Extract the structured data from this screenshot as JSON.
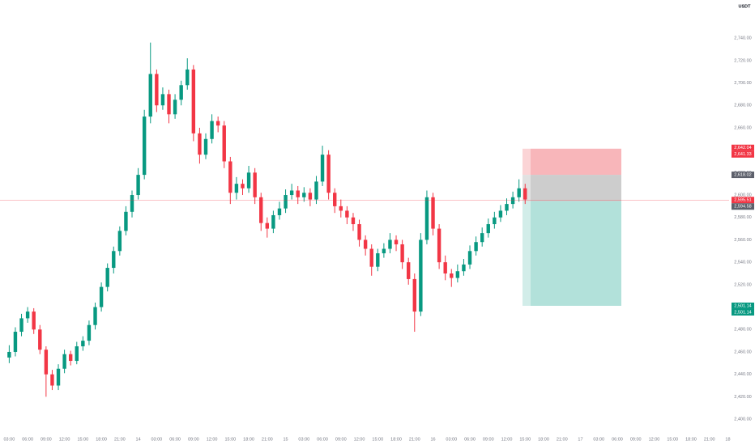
{
  "chart_data": {
    "type": "candlestick",
    "unit_label": "USDT",
    "up_color": "#089981",
    "down_color": "#f23645",
    "ylim": [
      2395,
      2774
    ],
    "xlim": [
      -1.5,
      120.5
    ],
    "yticks": [
      {
        "value": 2400,
        "label": "2,400.00"
      },
      {
        "value": 2420,
        "label": "2,420.00"
      },
      {
        "value": 2440,
        "label": "2,440.00"
      },
      {
        "value": 2460,
        "label": "2,460.00"
      },
      {
        "value": 2480,
        "label": "2,480.00"
      },
      {
        "value": 2500,
        "label": "2,500.00"
      },
      {
        "value": 2520,
        "label": "2,520.00"
      },
      {
        "value": 2540,
        "label": "2,540.00"
      },
      {
        "value": 2560,
        "label": "2,560.00"
      },
      {
        "value": 2580,
        "label": "2,580.00"
      },
      {
        "value": 2600,
        "label": "2,600.00"
      },
      {
        "value": 2620,
        "label": "2,620.00"
      },
      {
        "value": 2640,
        "label": "2,640.00"
      },
      {
        "value": 2660,
        "label": "2,660.00"
      },
      {
        "value": 2680,
        "label": "2,680.00"
      },
      {
        "value": 2700,
        "label": "2,700.00"
      },
      {
        "value": 2720,
        "label": "2,720.00"
      },
      {
        "value": 2740,
        "label": "2,740.00"
      }
    ],
    "xticks": [
      {
        "value": 0,
        "label": "03:00"
      },
      {
        "value": 3,
        "label": "06:00"
      },
      {
        "value": 6,
        "label": "09:00"
      },
      {
        "value": 9,
        "label": "12:00"
      },
      {
        "value": 12,
        "label": "15:00"
      },
      {
        "value": 15,
        "label": "18:00"
      },
      {
        "value": 18,
        "label": "21:00"
      },
      {
        "value": 21,
        "label": "14"
      },
      {
        "value": 24,
        "label": "03:00"
      },
      {
        "value": 27,
        "label": "06:00"
      },
      {
        "value": 30,
        "label": "09:00"
      },
      {
        "value": 33,
        "label": "12:00"
      },
      {
        "value": 36,
        "label": "15:00"
      },
      {
        "value": 39,
        "label": "18:00"
      },
      {
        "value": 42,
        "label": "21:00"
      },
      {
        "value": 45,
        "label": "15"
      },
      {
        "value": 48,
        "label": "03:00"
      },
      {
        "value": 51,
        "label": "06:00"
      },
      {
        "value": 54,
        "label": "09:00"
      },
      {
        "value": 57,
        "label": "12:00"
      },
      {
        "value": 60,
        "label": "15:00"
      },
      {
        "value": 63,
        "label": "18:00"
      },
      {
        "value": 66,
        "label": "21:00"
      },
      {
        "value": 69,
        "label": "16"
      },
      {
        "value": 72,
        "label": "03:00"
      },
      {
        "value": 75,
        "label": "06:00"
      },
      {
        "value": 78,
        "label": "09:00"
      },
      {
        "value": 81,
        "label": "12:00"
      },
      {
        "value": 84,
        "label": "15:00"
      },
      {
        "value": 87,
        "label": "18:00"
      },
      {
        "value": 90,
        "label": "21:00"
      },
      {
        "value": 93,
        "label": "17"
      },
      {
        "value": 96,
        "label": "03:00"
      },
      {
        "value": 99,
        "label": "06:00"
      },
      {
        "value": 102,
        "label": "09:00"
      },
      {
        "value": 105,
        "label": "12:00"
      },
      {
        "value": 108,
        "label": "15:00"
      },
      {
        "value": 111,
        "label": "18:00"
      },
      {
        "value": 114,
        "label": "21:00"
      },
      {
        "value": 117,
        "label": "18"
      }
    ],
    "ohlc": [
      [
        2455,
        2466,
        2450,
        2460
      ],
      [
        2460,
        2482,
        2456,
        2478
      ],
      [
        2478,
        2494,
        2474,
        2490
      ],
      [
        2490,
        2500,
        2486,
        2496
      ],
      [
        2496,
        2499,
        2476,
        2480
      ],
      [
        2480,
        2484,
        2458,
        2462
      ],
      [
        2462,
        2465,
        2420,
        2440
      ],
      [
        2440,
        2444,
        2426,
        2430
      ],
      [
        2430,
        2449,
        2426,
        2445
      ],
      [
        2445,
        2462,
        2441,
        2458
      ],
      [
        2458,
        2461,
        2448,
        2452
      ],
      [
        2452,
        2469,
        2449,
        2465
      ],
      [
        2465,
        2474,
        2461,
        2470
      ],
      [
        2470,
        2488,
        2466,
        2484
      ],
      [
        2484,
        2504,
        2480,
        2500
      ],
      [
        2500,
        2522,
        2496,
        2518
      ],
      [
        2518,
        2539,
        2514,
        2535
      ],
      [
        2535,
        2554,
        2530,
        2550
      ],
      [
        2550,
        2572,
        2546,
        2568
      ],
      [
        2568,
        2590,
        2564,
        2585
      ],
      [
        2585,
        2604,
        2580,
        2600
      ],
      [
        2600,
        2624,
        2596,
        2618
      ],
      [
        2618,
        2676,
        2614,
        2670
      ],
      [
        2670,
        2736,
        2664,
        2708
      ],
      [
        2708,
        2712,
        2674,
        2680
      ],
      [
        2680,
        2696,
        2676,
        2690
      ],
      [
        2690,
        2694,
        2664,
        2672
      ],
      [
        2672,
        2690,
        2668,
        2685
      ],
      [
        2685,
        2702,
        2680,
        2698
      ],
      [
        2698,
        2722,
        2694,
        2712
      ],
      [
        2712,
        2716,
        2648,
        2655
      ],
      [
        2655,
        2660,
        2628,
        2636
      ],
      [
        2636,
        2655,
        2632,
        2650
      ],
      [
        2650,
        2672,
        2646,
        2666
      ],
      [
        2666,
        2670,
        2656,
        2662
      ],
      [
        2662,
        2666,
        2624,
        2630
      ],
      [
        2630,
        2634,
        2592,
        2602
      ],
      [
        2602,
        2616,
        2596,
        2610
      ],
      [
        2610,
        2614,
        2600,
        2606
      ],
      [
        2606,
        2626,
        2602,
        2620
      ],
      [
        2620,
        2624,
        2592,
        2598
      ],
      [
        2598,
        2602,
        2568,
        2575
      ],
      [
        2575,
        2580,
        2562,
        2570
      ],
      [
        2570,
        2586,
        2566,
        2582
      ],
      [
        2582,
        2594,
        2578,
        2588
      ],
      [
        2588,
        2605,
        2584,
        2600
      ],
      [
        2600,
        2610,
        2596,
        2604
      ],
      [
        2604,
        2608,
        2592,
        2598
      ],
      [
        2598,
        2607,
        2594,
        2602
      ],
      [
        2602,
        2606,
        2590,
        2596
      ],
      [
        2596,
        2617,
        2592,
        2612
      ],
      [
        2612,
        2644,
        2608,
        2636
      ],
      [
        2636,
        2640,
        2596,
        2602
      ],
      [
        2602,
        2606,
        2584,
        2590
      ],
      [
        2590,
        2596,
        2580,
        2586
      ],
      [
        2586,
        2590,
        2574,
        2580
      ],
      [
        2580,
        2584,
        2568,
        2574
      ],
      [
        2574,
        2578,
        2554,
        2560
      ],
      [
        2560,
        2564,
        2546,
        2552
      ],
      [
        2552,
        2556,
        2528,
        2536
      ],
      [
        2536,
        2552,
        2532,
        2548
      ],
      [
        2548,
        2557,
        2544,
        2552
      ],
      [
        2552,
        2566,
        2548,
        2560
      ],
      [
        2560,
        2564,
        2550,
        2556
      ],
      [
        2556,
        2560,
        2534,
        2540
      ],
      [
        2540,
        2544,
        2520,
        2525
      ],
      [
        2525,
        2530,
        2478,
        2496
      ],
      [
        2496,
        2566,
        2492,
        2560
      ],
      [
        2560,
        2604,
        2556,
        2598
      ],
      [
        2598,
        2602,
        2564,
        2570
      ],
      [
        2570,
        2574,
        2534,
        2540
      ],
      [
        2540,
        2546,
        2524,
        2530
      ],
      [
        2530,
        2534,
        2518,
        2526
      ],
      [
        2526,
        2538,
        2522,
        2532
      ],
      [
        2532,
        2543,
        2528,
        2538
      ],
      [
        2538,
        2555,
        2534,
        2550
      ],
      [
        2550,
        2563,
        2546,
        2558
      ],
      [
        2558,
        2571,
        2554,
        2566
      ],
      [
        2566,
        2579,
        2562,
        2574
      ],
      [
        2574,
        2585,
        2570,
        2580
      ],
      [
        2580,
        2591,
        2576,
        2586
      ],
      [
        2586,
        2597,
        2582,
        2592
      ],
      [
        2592,
        2603,
        2588,
        2598
      ],
      [
        2598,
        2614,
        2594,
        2606
      ],
      [
        2606,
        2610,
        2592,
        2596
      ]
    ],
    "price_tags": [
      {
        "value": 2642.04,
        "label": "2,642.04",
        "color": "#f23645"
      },
      {
        "value": 2641.33,
        "label": "2,641.33",
        "color": "#f23645"
      },
      {
        "value": 2618.02,
        "label": "2,618.02",
        "color": "#5d606b"
      },
      {
        "value": 2595.51,
        "label": "2,595.51",
        "color": "#f23645"
      },
      {
        "value": 2594.58,
        "label": "2,594.58",
        "color": "#5d606b"
      },
      {
        "value": 2501.14,
        "label": "2,501.14",
        "color": "#089981"
      },
      {
        "value": 2501.14,
        "label": "2,501.14",
        "color": "#089981"
      }
    ],
    "position_colors": {
      "stop": "#f7a9ae",
      "entry": "#c4c4c4",
      "target": "#a5dcd3"
    }
  }
}
